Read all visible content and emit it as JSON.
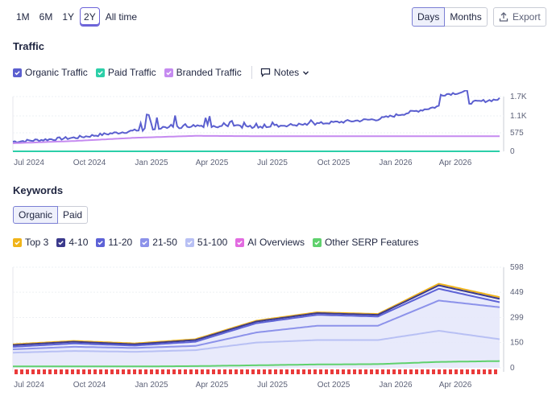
{
  "range_tabs": [
    "1M",
    "6M",
    "1Y",
    "2Y",
    "All time"
  ],
  "active_range": "2Y",
  "granularity": {
    "days": "Days",
    "months": "Months",
    "active": "Days"
  },
  "export_label": "Export",
  "traffic": {
    "title": "Traffic",
    "legend": [
      {
        "label": "Organic Traffic",
        "color": "#5b5fcf"
      },
      {
        "label": "Paid Traffic",
        "color": "#2ccfa8"
      },
      {
        "label": "Branded Traffic",
        "color": "#c58af0"
      }
    ],
    "notes_label": "Notes"
  },
  "keywords": {
    "title": "Keywords",
    "tabs": {
      "organic": "Organic",
      "paid": "Paid",
      "active": "Organic"
    },
    "legend": [
      {
        "label": "Top 3",
        "color": "#f0b41a"
      },
      {
        "label": "4-10",
        "color": "#3b3a8c"
      },
      {
        "label": "11-20",
        "color": "#5d62d6"
      },
      {
        "label": "21-50",
        "color": "#8c92ea"
      },
      {
        "label": "51-100",
        "color": "#b8c0f4"
      },
      {
        "label": "AI Overviews",
        "color": "#e26be0"
      },
      {
        "label": "Other SERP Features",
        "color": "#5fd16d"
      }
    ]
  },
  "x_tick_labels": [
    "Jul 2024",
    "Oct 2024",
    "Jan 2025",
    "Apr 2025",
    "Jul 2025",
    "Oct 2025",
    "Jan 2026",
    "Apr 2026"
  ],
  "chart_data": [
    {
      "type": "line",
      "x": [
        "Jul 2024",
        "Oct 2024",
        "Jan 2025",
        "Apr 2025",
        "Jul 2025",
        "Oct 2025",
        "Jan 2026",
        "Apr 2026",
        "Jun 2026"
      ],
      "ylim": [
        0,
        1700
      ],
      "y_ticks": [
        "1.7K",
        "1.1K",
        "575",
        "0"
      ],
      "series": [
        {
          "name": "Organic Traffic",
          "color": "#5b5fcf",
          "values": [
            300,
            420,
            640,
            800,
            760,
            860,
            1000,
            1400,
            1620
          ]
        },
        {
          "name": "Paid Traffic",
          "color": "#2ccfa8",
          "values": [
            0,
            0,
            0,
            0,
            0,
            0,
            0,
            0,
            0
          ]
        },
        {
          "name": "Branded Traffic",
          "color": "#c58af0",
          "values": [
            250,
            320,
            420,
            480,
            470,
            470,
            470,
            470,
            470
          ]
        }
      ]
    },
    {
      "type": "area",
      "x": [
        "Jul 2024",
        "Oct 2024",
        "Jan 2025",
        "Apr 2025",
        "Jul 2025",
        "Oct 2025",
        "Jan 2026",
        "Apr 2026",
        "Jun 2026"
      ],
      "ylim": [
        0,
        598
      ],
      "y_ticks": [
        "598",
        "449",
        "299",
        "150",
        "0"
      ],
      "series": [
        {
          "name": "Top 3",
          "color": "#f0b41a",
          "values": [
            140,
            160,
            145,
            170,
            280,
            330,
            320,
            500,
            420
          ]
        },
        {
          "name": "4-10",
          "color": "#3b3a8c",
          "values": [
            135,
            155,
            140,
            165,
            275,
            325,
            315,
            490,
            410
          ]
        },
        {
          "name": "11-20",
          "color": "#5d62d6",
          "values": [
            125,
            145,
            132,
            155,
            265,
            315,
            305,
            470,
            390
          ]
        },
        {
          "name": "21-50",
          "color": "#8c92ea",
          "values": [
            110,
            125,
            118,
            130,
            210,
            250,
            250,
            400,
            360
          ]
        },
        {
          "name": "51-100",
          "color": "#b8c0f4",
          "values": [
            90,
            100,
            95,
            105,
            150,
            165,
            165,
            220,
            170
          ]
        },
        {
          "name": "Other SERP Features",
          "color": "#5fd16d",
          "values": [
            8,
            8,
            8,
            10,
            15,
            20,
            22,
            35,
            40
          ]
        }
      ]
    }
  ]
}
